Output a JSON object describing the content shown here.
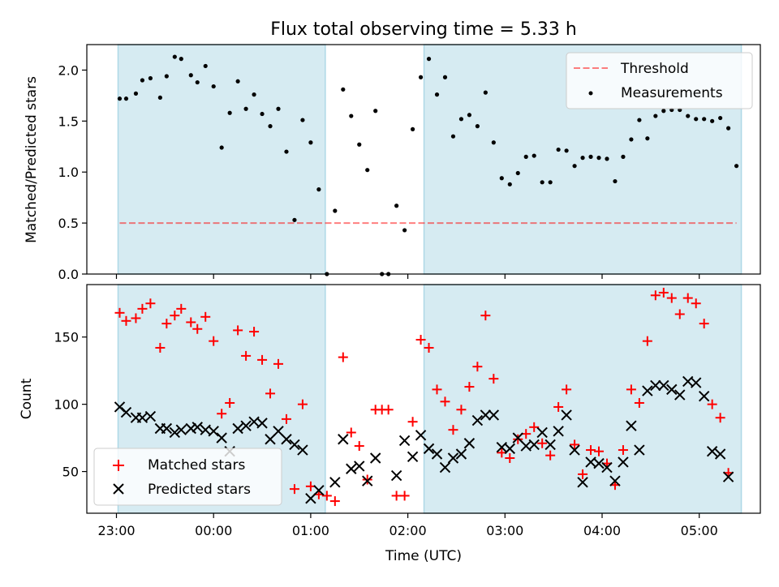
{
  "title": "Flux total observing time = 5.33 h",
  "colors": {
    "shade": "#add8e6",
    "threshold": "#ff0000",
    "matched": "#ff0000",
    "predicted": "#000000",
    "measurement": "#000000"
  },
  "chart_data": [
    {
      "type": "scatter",
      "ylabel": "Matched/Predicted stars",
      "xlabel": "",
      "ylim": [
        0,
        2.25
      ],
      "yticks": [
        0.0,
        0.5,
        1.0,
        1.5,
        2.0
      ],
      "ytick_labels": [
        "0.0",
        "0.5",
        "1.0",
        "1.5",
        "2.0"
      ],
      "grid": false,
      "legend_location": "top-right",
      "legend": [
        "Threshold",
        "Measurements"
      ],
      "threshold": 0.5,
      "shaded_intervals": [
        [
          "23:01",
          "01:09"
        ],
        [
          "02:10",
          "05:26"
        ]
      ],
      "series": [
        {
          "name": "Measurements",
          "points": [
            [
              "23:02",
              1.72
            ],
            [
              "23:06",
              1.72
            ],
            [
              "23:12",
              1.77
            ],
            [
              "23:16",
              1.9
            ],
            [
              "23:21",
              1.92
            ],
            [
              "23:27",
              1.73
            ],
            [
              "23:31",
              1.94
            ],
            [
              "23:36",
              2.13
            ],
            [
              "23:40",
              2.11
            ],
            [
              "23:46",
              1.95
            ],
            [
              "23:50",
              1.88
            ],
            [
              "23:55",
              2.04
            ],
            [
              "00:00",
              1.84
            ],
            [
              "00:05",
              1.24
            ],
            [
              "00:10",
              1.58
            ],
            [
              "00:15",
              1.89
            ],
            [
              "00:20",
              1.62
            ],
            [
              "00:25",
              1.76
            ],
            [
              "00:30",
              1.57
            ],
            [
              "00:35",
              1.45
            ],
            [
              "00:40",
              1.62
            ],
            [
              "00:45",
              1.2
            ],
            [
              "00:50",
              0.53
            ],
            [
              "00:55",
              1.51
            ],
            [
              "01:00",
              1.29
            ],
            [
              "01:05",
              0.83
            ],
            [
              "01:10",
              0.0
            ],
            [
              "01:15",
              0.62
            ],
            [
              "01:20",
              1.81
            ],
            [
              "01:25",
              1.55
            ],
            [
              "01:30",
              1.27
            ],
            [
              "01:35",
              1.02
            ],
            [
              "01:40",
              1.6
            ],
            [
              "01:44",
              0.0
            ],
            [
              "01:48",
              0.0
            ],
            [
              "01:53",
              0.67
            ],
            [
              "01:58",
              0.43
            ],
            [
              "02:03",
              1.42
            ],
            [
              "02:08",
              1.93
            ],
            [
              "02:13",
              2.11
            ],
            [
              "02:18",
              1.76
            ],
            [
              "02:23",
              1.93
            ],
            [
              "02:28",
              1.35
            ],
            [
              "02:33",
              1.52
            ],
            [
              "02:38",
              1.56
            ],
            [
              "02:43",
              1.45
            ],
            [
              "02:48",
              1.78
            ],
            [
              "02:53",
              1.29
            ],
            [
              "02:58",
              0.94
            ],
            [
              "03:03",
              0.88
            ],
            [
              "03:08",
              0.99
            ],
            [
              "03:13",
              1.15
            ],
            [
              "03:18",
              1.16
            ],
            [
              "03:23",
              0.9
            ],
            [
              "03:28",
              0.9
            ],
            [
              "03:33",
              1.22
            ],
            [
              "03:38",
              1.21
            ],
            [
              "03:43",
              1.06
            ],
            [
              "03:48",
              1.14
            ],
            [
              "03:53",
              1.15
            ],
            [
              "03:58",
              1.14
            ],
            [
              "04:03",
              1.13
            ],
            [
              "04:08",
              0.91
            ],
            [
              "04:13",
              1.15
            ],
            [
              "04:18",
              1.32
            ],
            [
              "04:23",
              1.51
            ],
            [
              "04:28",
              1.33
            ],
            [
              "04:33",
              1.55
            ],
            [
              "04:38",
              1.6
            ],
            [
              "04:43",
              1.61
            ],
            [
              "04:48",
              1.61
            ],
            [
              "04:53",
              1.55
            ],
            [
              "04:58",
              1.52
            ],
            [
              "05:03",
              1.52
            ],
            [
              "05:08",
              1.5
            ],
            [
              "05:13",
              1.53
            ],
            [
              "05:18",
              1.43
            ],
            [
              "05:23",
              1.06
            ]
          ]
        }
      ]
    },
    {
      "type": "scatter",
      "ylabel": "Count",
      "xlabel": "Time (UTC)",
      "ylim": [
        19,
        189
      ],
      "yticks": [
        50,
        100,
        150
      ],
      "ytick_labels": [
        "50",
        "100",
        "150"
      ],
      "xticks": [
        "23:00",
        "00:00",
        "01:00",
        "02:00",
        "03:00",
        "04:00",
        "05:00"
      ],
      "grid": false,
      "legend_location": "bottom-left",
      "legend": [
        "Matched stars",
        "Predicted stars"
      ],
      "shaded_intervals": [
        [
          "23:01",
          "01:09"
        ],
        [
          "02:10",
          "05:26"
        ]
      ],
      "series": [
        {
          "name": "Matched stars",
          "marker": "+",
          "points": [
            [
              "23:02",
              168
            ],
            [
              "23:06",
              162
            ],
            [
              "23:12",
              164
            ],
            [
              "23:16",
              171
            ],
            [
              "23:21",
              175
            ],
            [
              "23:27",
              142
            ],
            [
              "23:31",
              160
            ],
            [
              "23:36",
              166
            ],
            [
              "23:40",
              171
            ],
            [
              "23:46",
              161
            ],
            [
              "23:50",
              156
            ],
            [
              "23:55",
              165
            ],
            [
              "00:00",
              147
            ],
            [
              "00:05",
              93
            ],
            [
              "00:10",
              101
            ],
            [
              "00:15",
              155
            ],
            [
              "00:20",
              136
            ],
            [
              "00:25",
              154
            ],
            [
              "00:30",
              133
            ],
            [
              "00:35",
              108
            ],
            [
              "00:40",
              130
            ],
            [
              "00:45",
              89
            ],
            [
              "00:50",
              37
            ],
            [
              "00:55",
              100
            ],
            [
              "01:00",
              39
            ],
            [
              "01:05",
              33
            ],
            [
              "01:10",
              32
            ],
            [
              "01:15",
              28
            ],
            [
              "01:20",
              135
            ],
            [
              "01:25",
              79
            ],
            [
              "01:30",
              69
            ],
            [
              "01:35",
              44
            ],
            [
              "01:40",
              96
            ],
            [
              "01:44",
              96
            ],
            [
              "01:48",
              96
            ],
            [
              "01:53",
              32
            ],
            [
              "01:58",
              32
            ],
            [
              "02:03",
              87
            ],
            [
              "02:08",
              148
            ],
            [
              "02:13",
              142
            ],
            [
              "02:18",
              111
            ],
            [
              "02:23",
              102
            ],
            [
              "02:28",
              81
            ],
            [
              "02:33",
              96
            ],
            [
              "02:38",
              113
            ],
            [
              "02:43",
              128
            ],
            [
              "02:48",
              166
            ],
            [
              "02:53",
              119
            ],
            [
              "02:58",
              64
            ],
            [
              "03:03",
              60
            ],
            [
              "03:08",
              74
            ],
            [
              "03:13",
              78
            ],
            [
              "03:18",
              83
            ],
            [
              "03:23",
              71
            ],
            [
              "03:28",
              62
            ],
            [
              "03:33",
              98
            ],
            [
              "03:38",
              111
            ],
            [
              "03:43",
              70
            ],
            [
              "03:48",
              48
            ],
            [
              "03:53",
              66
            ],
            [
              "03:58",
              65
            ],
            [
              "04:03",
              56
            ],
            [
              "04:08",
              40
            ],
            [
              "04:13",
              66
            ],
            [
              "04:18",
              111
            ],
            [
              "04:23",
              101
            ],
            [
              "04:28",
              147
            ],
            [
              "04:33",
              181
            ],
            [
              "04:38",
              183
            ],
            [
              "04:43",
              179
            ],
            [
              "04:48",
              167
            ],
            [
              "04:53",
              179
            ],
            [
              "04:58",
              175
            ],
            [
              "05:03",
              160
            ],
            [
              "05:08",
              100
            ],
            [
              "05:13",
              90
            ],
            [
              "05:18",
              49
            ]
          ]
        },
        {
          "name": "Predicted stars",
          "marker": "x",
          "points": [
            [
              "23:02",
              98
            ],
            [
              "23:06",
              94
            ],
            [
              "23:12",
              90
            ],
            [
              "23:16",
              90
            ],
            [
              "23:21",
              91
            ],
            [
              "23:27",
              82
            ],
            [
              "23:31",
              82
            ],
            [
              "23:36",
              79
            ],
            [
              "23:40",
              81
            ],
            [
              "23:46",
              82
            ],
            [
              "23:50",
              83
            ],
            [
              "23:55",
              81
            ],
            [
              "00:00",
              80
            ],
            [
              "00:05",
              75
            ],
            [
              "00:10",
              65
            ],
            [
              "00:15",
              82
            ],
            [
              "00:20",
              84
            ],
            [
              "00:25",
              87
            ],
            [
              "00:30",
              86
            ],
            [
              "00:35",
              74
            ],
            [
              "00:40",
              80
            ],
            [
              "00:45",
              74
            ],
            [
              "00:50",
              70
            ],
            [
              "00:55",
              66
            ],
            [
              "01:00",
              30
            ],
            [
              "01:05",
              36
            ],
            [
              "01:15",
              42
            ],
            [
              "01:20",
              74
            ],
            [
              "01:25",
              52
            ],
            [
              "01:30",
              54
            ],
            [
              "01:35",
              43
            ],
            [
              "01:40",
              60
            ],
            [
              "01:53",
              47
            ],
            [
              "01:58",
              73
            ],
            [
              "02:03",
              61
            ],
            [
              "02:08",
              77
            ],
            [
              "02:13",
              67
            ],
            [
              "02:18",
              63
            ],
            [
              "02:23",
              53
            ],
            [
              "02:28",
              60
            ],
            [
              "02:33",
              63
            ],
            [
              "02:38",
              71
            ],
            [
              "02:43",
              88
            ],
            [
              "02:48",
              92
            ],
            [
              "02:53",
              92
            ],
            [
              "02:58",
              68
            ],
            [
              "03:03",
              67
            ],
            [
              "03:08",
              75
            ],
            [
              "03:13",
              69
            ],
            [
              "03:18",
              70
            ],
            [
              "03:23",
              79
            ],
            [
              "03:28",
              70
            ],
            [
              "03:33",
              80
            ],
            [
              "03:38",
              92
            ],
            [
              "03:43",
              66
            ],
            [
              "03:48",
              42
            ],
            [
              "03:53",
              57
            ],
            [
              "03:58",
              56
            ],
            [
              "04:03",
              53
            ],
            [
              "04:08",
              43
            ],
            [
              "04:13",
              57
            ],
            [
              "04:18",
              84
            ],
            [
              "04:23",
              66
            ],
            [
              "04:28",
              110
            ],
            [
              "04:33",
              114
            ],
            [
              "04:38",
              114
            ],
            [
              "04:43",
              111
            ],
            [
              "04:48",
              107
            ],
            [
              "04:53",
              117
            ],
            [
              "04:58",
              116
            ],
            [
              "05:03",
              106
            ],
            [
              "05:08",
              65
            ],
            [
              "05:13",
              63
            ],
            [
              "05:18",
              46
            ]
          ]
        }
      ]
    }
  ]
}
